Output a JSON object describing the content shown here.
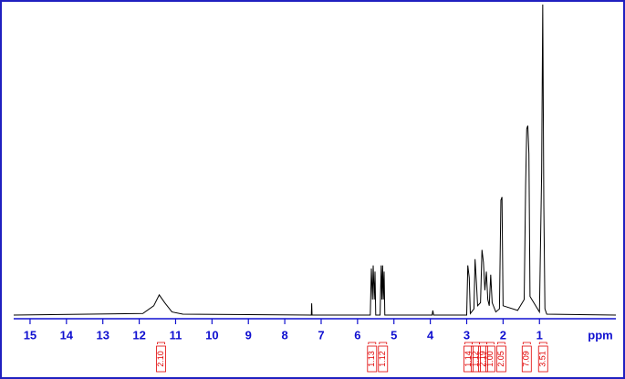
{
  "chart_data": {
    "type": "line",
    "xlabel": "ppm",
    "xlim": [
      15.45,
      -1.1
    ],
    "xticks": [
      15,
      14,
      13,
      12,
      11,
      10,
      9,
      8,
      7,
      6,
      5,
      4,
      3,
      2,
      1
    ],
    "ylim": [
      0,
      100
    ],
    "series": [
      {
        "color": "#000000",
        "x": [
          15.45,
          11.9,
          11.6,
          11.45,
          11.3,
          11.1,
          10.8,
          7.27,
          7.26,
          7.25,
          5.65,
          5.62,
          5.59,
          5.57,
          5.54,
          5.52,
          5.5,
          5.38,
          5.35,
          5.33,
          5.31,
          5.29,
          5.27,
          5.25,
          3.95,
          3.93,
          3.91,
          3.0,
          2.97,
          2.93,
          2.9,
          2.8,
          2.77,
          2.73,
          2.7,
          2.62,
          2.58,
          2.54,
          2.5,
          2.46,
          2.42,
          2.38,
          2.34,
          2.3,
          2.2,
          2.1,
          2.06,
          2.03,
          2.0,
          1.6,
          1.42,
          1.38,
          1.35,
          1.32,
          1.29,
          1.26,
          1.0,
          0.94,
          0.91,
          0.88,
          0.85,
          0.8,
          -1.1
        ],
        "values": [
          0,
          0.5,
          3,
          6.5,
          4,
          1,
          0.3,
          0,
          3.8,
          0,
          0,
          15,
          5,
          16,
          5,
          14,
          0,
          0,
          16,
          5,
          16,
          5,
          14,
          0,
          0,
          1.5,
          0,
          0,
          16,
          12,
          0.5,
          2,
          18,
          10,
          3,
          4,
          21,
          17,
          8,
          14,
          5,
          3,
          13,
          4,
          1,
          2,
          37,
          38,
          3,
          1.5,
          5,
          42,
          60,
          61,
          52,
          6,
          1,
          46,
          100,
          35,
          2,
          0.3,
          0
        ]
      }
    ],
    "integrals": {
      "color": "#e00000",
      "ppm": [
        11.4,
        5.6,
        5.3,
        2.95,
        2.75,
        2.55,
        2.35,
        2.05,
        1.35,
        0.9
      ],
      "labels": [
        "2.10",
        "1.13",
        "1.12",
        "1.14",
        "1.12",
        "2.19",
        "1.00",
        "2.05",
        "7.09",
        "3.51"
      ]
    },
    "axis_color": "#1010d0"
  }
}
